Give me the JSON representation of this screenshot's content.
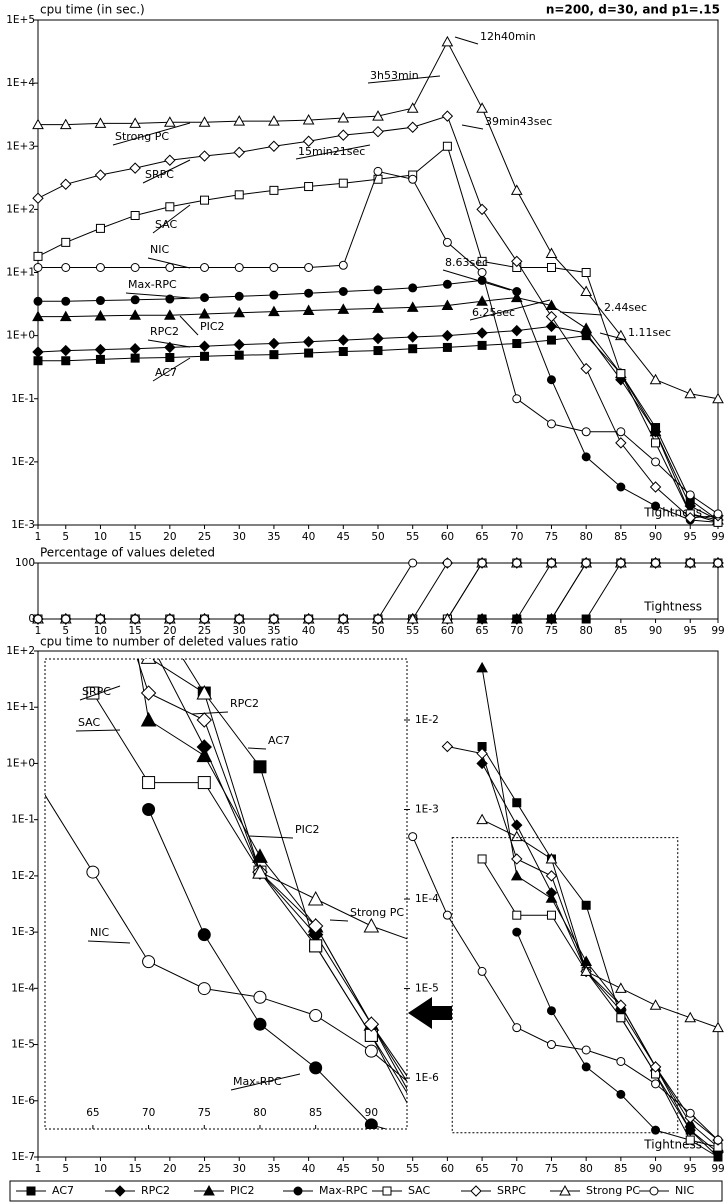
{
  "chart_data": [
    {
      "type": "line",
      "title": "cpu time (in sec.)",
      "subtitle": "n=200, d=30, and p1=.15",
      "xlabel": "Tightness",
      "log": true,
      "x": [
        1,
        5,
        10,
        15,
        20,
        25,
        30,
        35,
        40,
        45,
        50,
        55,
        60,
        65,
        70,
        75,
        80,
        85,
        90,
        95,
        99
      ],
      "xlim": [
        1,
        99
      ],
      "xticks": [
        1,
        5,
        10,
        15,
        20,
        25,
        30,
        35,
        40,
        45,
        50,
        55,
        60,
        65,
        70,
        75,
        80,
        85,
        90,
        95,
        99
      ],
      "ylim": [
        0.001,
        100000
      ],
      "yticks": [
        {
          "value": 0.001,
          "label": "1E-3"
        },
        {
          "value": 0.01,
          "label": "1E-2"
        },
        {
          "value": 0.1,
          "label": "1E-1"
        },
        {
          "value": 1,
          "label": "1E+0"
        },
        {
          "value": 10,
          "label": "1E+1"
        },
        {
          "value": 100,
          "label": "1E+2"
        },
        {
          "value": 1000,
          "label": "1E+3"
        },
        {
          "value": 10000,
          "label": "1E+4"
        },
        {
          "value": 100000,
          "label": "1E+5"
        }
      ],
      "annotations": [
        "12h40min",
        "3h53min",
        "39min43sec",
        "15min21sec",
        "8.63sec",
        "6.25sec",
        "2.44sec",
        "1.11sec"
      ],
      "series": [
        {
          "name": "AC7",
          "color": "#000000",
          "marker": "square",
          "filled": true,
          "values": [
            0.4,
            0.4,
            0.42,
            0.44,
            0.45,
            0.47,
            0.49,
            0.5,
            0.53,
            0.56,
            0.58,
            0.62,
            0.65,
            0.7,
            0.75,
            0.85,
            1.0,
            0.25,
            0.035,
            0.0025,
            0.0012
          ]
        },
        {
          "name": "RPC2",
          "color": "#000000",
          "marker": "diamond",
          "filled": true,
          "values": [
            0.55,
            0.58,
            0.6,
            0.62,
            0.65,
            0.68,
            0.72,
            0.75,
            0.8,
            0.85,
            0.9,
            0.95,
            1.0,
            1.1,
            1.2,
            1.4,
            1.1,
            0.2,
            0.03,
            0.002,
            0.0012
          ]
        },
        {
          "name": "PIC2",
          "color": "#000000",
          "marker": "triangle",
          "filled": true,
          "values": [
            2,
            2,
            2.05,
            2.1,
            2.1,
            2.2,
            2.3,
            2.4,
            2.5,
            2.6,
            2.7,
            2.8,
            3,
            3.5,
            4,
            3,
            1.3,
            0.25,
            0.03,
            0.0015,
            0.0012
          ]
        },
        {
          "name": "Max-RPC",
          "color": "#000000",
          "marker": "circle",
          "filled": true,
          "values": [
            3.5,
            3.5,
            3.6,
            3.7,
            3.8,
            4,
            4.2,
            4.4,
            4.7,
            5,
            5.3,
            5.7,
            6.5,
            7.5,
            5,
            0.2,
            0.012,
            0.004,
            0.002,
            0.0012,
            0.0011
          ]
        },
        {
          "name": "SAC",
          "color": "#000000",
          "marker": "square",
          "filled": false,
          "values": [
            18,
            30,
            50,
            80,
            110,
            140,
            170,
            200,
            230,
            260,
            300,
            350,
            1000,
            15,
            12,
            12,
            10,
            0.25,
            0.02,
            0.0015,
            0.0011
          ]
        },
        {
          "name": "SRPC",
          "color": "#000000",
          "marker": "diamond",
          "filled": false,
          "values": [
            150,
            250,
            350,
            450,
            600,
            700,
            800,
            1000,
            1200,
            1500,
            1700,
            2000,
            3000,
            100,
            15,
            2,
            0.3,
            0.02,
            0.004,
            0.0013,
            0.0014
          ]
        },
        {
          "name": "Strong PC",
          "color": "#000000",
          "marker": "triangle",
          "filled": false,
          "values": [
            2200,
            2200,
            2300,
            2300,
            2400,
            2400,
            2500,
            2500,
            2600,
            2800,
            3000,
            4000,
            45000,
            4000,
            200,
            20,
            5,
            1,
            0.2,
            0.12,
            0.1
          ]
        },
        {
          "name": "NIC",
          "color": "#000000",
          "marker": "circle",
          "filled": false,
          "values": [
            12,
            12,
            12,
            12,
            12,
            12,
            12,
            12,
            12,
            13,
            400,
            300,
            30,
            10,
            0.1,
            0.04,
            0.03,
            0.03,
            0.01,
            0.003,
            0.0015
          ]
        }
      ]
    },
    {
      "type": "line",
      "title": "Percentage of values deleted",
      "xlabel": "Tightness",
      "log": false,
      "x": [
        1,
        5,
        10,
        15,
        20,
        25,
        30,
        35,
        40,
        45,
        50,
        55,
        60,
        65,
        70,
        75,
        80,
        85,
        90,
        95,
        99
      ],
      "xlim": [
        1,
        99
      ],
      "xticks": [
        1,
        5,
        10,
        15,
        20,
        25,
        30,
        35,
        40,
        45,
        50,
        55,
        60,
        65,
        70,
        75,
        80,
        85,
        90,
        95,
        99
      ],
      "ylim": [
        0,
        100
      ],
      "yticks": [
        0,
        100
      ],
      "series": [
        {
          "name": "AC7",
          "color": "#000000",
          "marker": "square",
          "filled": true,
          "values": [
            0,
            0,
            0,
            0,
            0,
            0,
            0,
            0,
            0,
            0,
            0,
            0,
            0,
            0,
            0,
            0,
            0,
            100,
            100,
            100,
            100
          ]
        },
        {
          "name": "RPC2",
          "color": "#000000",
          "marker": "diamond",
          "filled": true,
          "values": [
            0,
            0,
            0,
            0,
            0,
            0,
            0,
            0,
            0,
            0,
            0,
            0,
            0,
            0,
            0,
            0,
            100,
            100,
            100,
            100,
            100
          ]
        },
        {
          "name": "PIC2",
          "color": "#000000",
          "marker": "triangle",
          "filled": true,
          "values": [
            0,
            0,
            0,
            0,
            0,
            0,
            0,
            0,
            0,
            0,
            0,
            0,
            0,
            0,
            0,
            0,
            100,
            100,
            100,
            100,
            100
          ]
        },
        {
          "name": "Max-RPC",
          "color": "#000000",
          "marker": "circle",
          "filled": true,
          "values": [
            0,
            0,
            0,
            0,
            0,
            0,
            0,
            0,
            0,
            0,
            0,
            0,
            0,
            0,
            0,
            100,
            100,
            100,
            100,
            100,
            100
          ]
        },
        {
          "name": "SAC",
          "color": "#000000",
          "marker": "square",
          "filled": false,
          "values": [
            0,
            0,
            0,
            0,
            0,
            0,
            0,
            0,
            0,
            0,
            0,
            0,
            0,
            100,
            100,
            100,
            100,
            100,
            100,
            100,
            100
          ]
        },
        {
          "name": "SRPC",
          "color": "#000000",
          "marker": "diamond",
          "filled": false,
          "values": [
            0,
            0,
            0,
            0,
            0,
            0,
            0,
            0,
            0,
            0,
            0,
            0,
            100,
            100,
            100,
            100,
            100,
            100,
            100,
            100,
            100
          ]
        },
        {
          "name": "Strong PC",
          "color": "#000000",
          "marker": "triangle",
          "filled": false,
          "values": [
            0,
            0,
            0,
            0,
            0,
            0,
            0,
            0,
            0,
            0,
            0,
            0,
            0,
            100,
            100,
            100,
            100,
            100,
            100,
            100,
            100
          ]
        },
        {
          "name": "NIC",
          "color": "#000000",
          "marker": "circle",
          "filled": false,
          "values": [
            0,
            0,
            0,
            0,
            0,
            0,
            0,
            0,
            0,
            0,
            0,
            100,
            100,
            100,
            100,
            100,
            100,
            100,
            100,
            100,
            100
          ]
        }
      ]
    },
    {
      "type": "line",
      "title": "cpu time to number of deleted values ratio",
      "xlabel": "Tightness",
      "log": true,
      "x": [
        1,
        5,
        10,
        15,
        20,
        25,
        30,
        35,
        40,
        45,
        50,
        55,
        60,
        65,
        70,
        75,
        80,
        85,
        90,
        95,
        99
      ],
      "xlim": [
        1,
        99
      ],
      "xticks": [
        1,
        5,
        10,
        15,
        20,
        25,
        30,
        35,
        40,
        45,
        50,
        55,
        60,
        65,
        70,
        75,
        80,
        85,
        90,
        95,
        99
      ],
      "ylim": [
        1e-07,
        100
      ],
      "yticks": [
        {
          "value": 1e-07,
          "label": "1E-7"
        },
        {
          "value": 1e-06,
          "label": "1E-6"
        },
        {
          "value": 1e-05,
          "label": "1E-5"
        },
        {
          "value": 0.0001,
          "label": "1E-4"
        },
        {
          "value": 0.001,
          "label": "1E-3"
        },
        {
          "value": 0.01,
          "label": "1E-2"
        },
        {
          "value": 0.1,
          "label": "1E-1"
        },
        {
          "value": 1,
          "label": "1E+0"
        },
        {
          "value": 10,
          "label": "1E+1"
        },
        {
          "value": 100,
          "label": "1E+2"
        }
      ],
      "inset": {
        "xlim": [
          60.7,
          93.2
        ],
        "ylim": [
          2.7e-07,
          0.048
        ],
        "xticks": [
          65,
          70,
          75,
          80,
          85,
          90
        ],
        "yticks": [
          {
            "value": 0.01,
            "label": "1E-2"
          },
          {
            "value": 0.001,
            "label": "1E-3"
          },
          {
            "value": 0.0001,
            "label": "1E-4"
          },
          {
            "value": 1e-05,
            "label": "1E-5"
          },
          {
            "value": 1e-06,
            "label": "1E-6"
          }
        ]
      },
      "series": [
        {
          "name": "AC7",
          "color": "#000000",
          "marker": "square",
          "filled": true,
          "values": [
            null,
            null,
            null,
            null,
            null,
            null,
            null,
            null,
            null,
            null,
            null,
            null,
            null,
            2,
            0.2,
            0.02,
            0.003,
            3e-05,
            3e-06,
            3e-07,
            1e-07
          ]
        },
        {
          "name": "RPC2",
          "color": "#000000",
          "marker": "diamond",
          "filled": true,
          "values": [
            null,
            null,
            null,
            null,
            null,
            null,
            null,
            null,
            null,
            null,
            null,
            null,
            null,
            1,
            0.08,
            0.005,
            0.0002,
            4e-05,
            4e-06,
            3e-07,
            1.2e-07
          ]
        },
        {
          "name": "PIC2",
          "color": "#000000",
          "marker": "triangle",
          "filled": true,
          "values": [
            null,
            null,
            null,
            null,
            null,
            null,
            null,
            null,
            null,
            null,
            null,
            null,
            null,
            50,
            0.01,
            0.004,
            0.0003,
            5e-05,
            4e-06,
            4e-07,
            1.5e-07
          ]
        },
        {
          "name": "Max-RPC",
          "color": "#000000",
          "marker": "circle",
          "filled": true,
          "values": [
            null,
            null,
            null,
            null,
            null,
            null,
            null,
            null,
            null,
            null,
            null,
            null,
            null,
            null,
            0.001,
            4e-05,
            4e-06,
            1.3e-06,
            3e-07,
            2e-07,
            1e-07
          ]
        },
        {
          "name": "SAC",
          "color": "#000000",
          "marker": "square",
          "filled": false,
          "values": [
            null,
            null,
            null,
            null,
            null,
            null,
            null,
            null,
            null,
            null,
            null,
            null,
            null,
            0.02,
            0.002,
            0.002,
            0.0002,
            3e-05,
            3e-06,
            2e-07,
            1.5e-07
          ]
        },
        {
          "name": "SRPC",
          "color": "#000000",
          "marker": "diamond",
          "filled": false,
          "values": [
            null,
            null,
            null,
            null,
            null,
            null,
            null,
            null,
            null,
            null,
            null,
            null,
            2,
            1.5,
            0.02,
            0.01,
            0.0002,
            5e-05,
            4e-06,
            5e-07,
            2e-07
          ]
        },
        {
          "name": "Strong PC",
          "color": "#000000",
          "marker": "triangle",
          "filled": false,
          "values": [
            null,
            null,
            null,
            null,
            null,
            null,
            null,
            null,
            null,
            null,
            null,
            null,
            null,
            0.1,
            0.05,
            0.02,
            0.0002,
            0.0001,
            5e-05,
            3e-05,
            2e-05
          ]
        },
        {
          "name": "NIC",
          "color": "#000000",
          "marker": "circle",
          "filled": false,
          "values": [
            null,
            null,
            null,
            null,
            null,
            null,
            null,
            null,
            null,
            null,
            null,
            0.05,
            0.002,
            0.0002,
            2e-05,
            1e-05,
            8e-06,
            5e-06,
            2e-06,
            6e-07,
            2e-07
          ]
        }
      ]
    }
  ]
}
